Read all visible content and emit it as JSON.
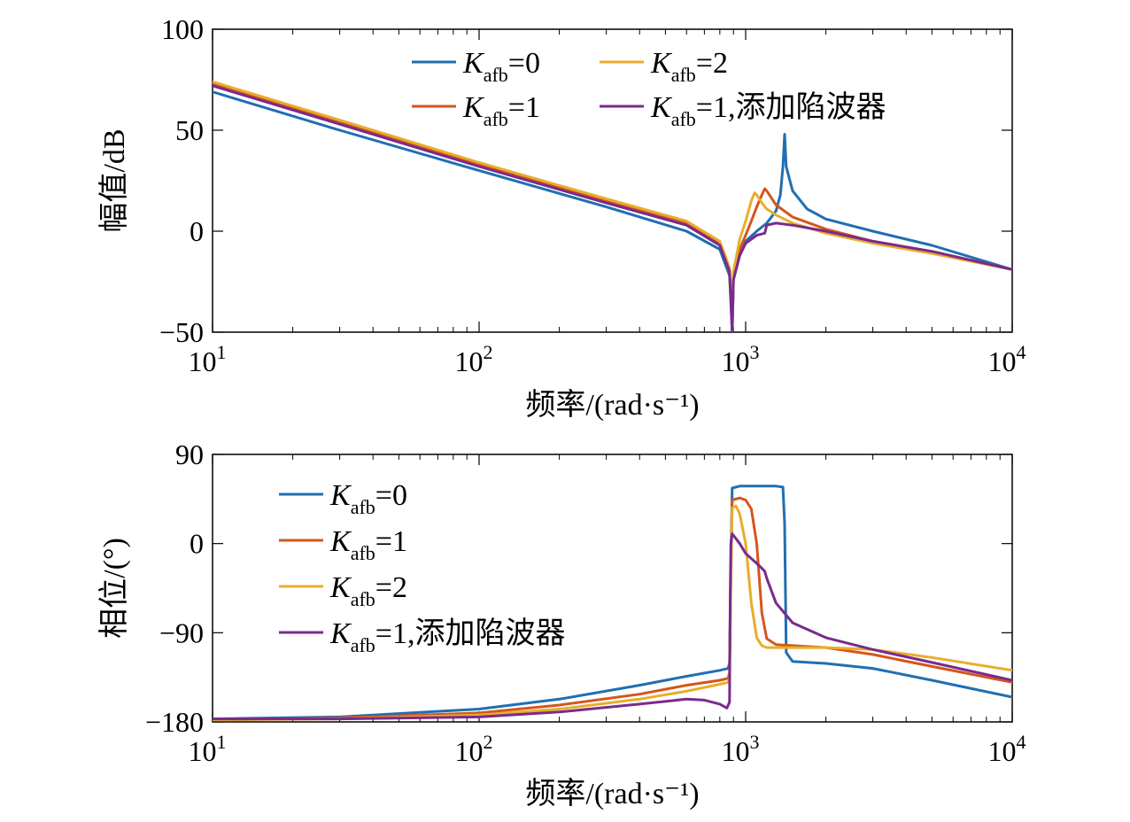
{
  "colors": {
    "k0": "#1f6fb2",
    "k1": "#d4561b",
    "k2": "#e8ad2b",
    "notch": "#7a2a8c"
  },
  "chart_data": [
    {
      "type": "line",
      "xscale": "log",
      "xlim": [
        10,
        10000
      ],
      "ylim": [
        -50,
        100
      ],
      "xlabel": "频率/(rad·s⁻¹)",
      "ylabel": "幅值/dB",
      "xticks": [
        10,
        100,
        1000,
        10000
      ],
      "yticks": [
        100,
        50,
        0,
        -50
      ],
      "xtick_labels": [
        {
          "base": "10",
          "exp": "1"
        },
        {
          "base": "10",
          "exp": "2"
        },
        {
          "base": "10",
          "exp": "3"
        },
        {
          "base": "10",
          "exp": "4"
        }
      ],
      "ytick_labels": [
        "100",
        "50",
        "0",
        "−50"
      ],
      "legend_position": "top",
      "series": [
        {
          "name": "Kafb=0",
          "label_main": "K",
          "label_sub": "afb",
          "label_tail": "=0",
          "color_key": "k0",
          "x": [
            10,
            30,
            100,
            300,
            600,
            800,
            870,
            880,
            890,
            900,
            950,
            1000,
            1100,
            1200,
            1300,
            1350,
            1380,
            1400,
            1420,
            1500,
            1700,
            2000,
            3000,
            5000,
            10000
          ],
          "y": [
            69,
            50,
            30,
            12,
            0,
            -9,
            -22,
            -35,
            -50,
            -24,
            -12,
            -5,
            0,
            4,
            10,
            18,
            32,
            48,
            32,
            20,
            11,
            6,
            0,
            -7,
            -19
          ]
        },
        {
          "name": "Kafb=1",
          "label_main": "K",
          "label_sub": "afb",
          "label_tail": "=1",
          "color_key": "k1",
          "x": [
            10,
            30,
            100,
            300,
            600,
            800,
            870,
            880,
            890,
            900,
            950,
            1000,
            1050,
            1100,
            1150,
            1180,
            1200,
            1300,
            1500,
            2000,
            3000,
            5000,
            10000
          ],
          "y": [
            73,
            54,
            33,
            15,
            4,
            -6,
            -20,
            -33,
            -48,
            -22,
            -9,
            -2,
            5,
            12,
            18,
            21,
            20,
            13,
            7,
            1,
            -5,
            -10,
            -19
          ]
        },
        {
          "name": "Kafb=2",
          "label_main": "K",
          "label_sub": "afb",
          "label_tail": "=2",
          "color_key": "k2",
          "x": [
            10,
            30,
            100,
            300,
            600,
            800,
            870,
            880,
            890,
            900,
            950,
            1000,
            1050,
            1080,
            1100,
            1150,
            1200,
            1300,
            1500,
            2000,
            3000,
            5000,
            10000
          ],
          "y": [
            74,
            55,
            34,
            16,
            5,
            -5,
            -18,
            -30,
            -44,
            -20,
            -4,
            5,
            15,
            19,
            18,
            14,
            11,
            8,
            4,
            -1,
            -6,
            -11,
            -19
          ]
        },
        {
          "name": "Kafb=1,添加陷波器",
          "label_main": "K",
          "label_sub": "afb",
          "label_tail": "=1,添加陷波器",
          "color_key": "notch",
          "x": [
            10,
            30,
            100,
            300,
            600,
            800,
            870,
            880,
            890,
            900,
            950,
            1000,
            1100,
            1180,
            1200,
            1300,
            1500,
            2000,
            3000,
            5000,
            10000
          ],
          "y": [
            72,
            53,
            32,
            14,
            3,
            -7,
            -20,
            -35,
            -50,
            -24,
            -12,
            -6,
            -2,
            -1,
            3,
            4,
            3,
            0,
            -5,
            -10,
            -19
          ]
        }
      ]
    },
    {
      "type": "line",
      "xscale": "log",
      "xlim": [
        10,
        10000
      ],
      "ylim": [
        -180,
        90
      ],
      "xlabel": "频率/(rad·s⁻¹)",
      "ylabel": "相位/(°)",
      "xticks": [
        10,
        100,
        1000,
        10000
      ],
      "yticks": [
        90,
        0,
        -90,
        -180
      ],
      "xtick_labels": [
        {
          "base": "10",
          "exp": "1"
        },
        {
          "base": "10",
          "exp": "2"
        },
        {
          "base": "10",
          "exp": "3"
        },
        {
          "base": "10",
          "exp": "4"
        }
      ],
      "ytick_labels": [
        "90",
        "0",
        "−90",
        "−180"
      ],
      "legend_position": "top-left",
      "series": [
        {
          "name": "Kafb=0",
          "label_main": "K",
          "label_sub": "afb",
          "label_tail": "=0",
          "color_key": "k0",
          "x": [
            10,
            30,
            100,
            200,
            400,
            600,
            800,
            860,
            870,
            880,
            890,
            950,
            1100,
            1300,
            1380,
            1400,
            1420,
            1500,
            2000,
            3000,
            5000,
            10000
          ],
          "y": [
            -177,
            -175,
            -167,
            -157,
            -143,
            -134,
            -128,
            -126,
            -120,
            -20,
            56,
            58,
            58,
            58,
            57,
            20,
            -110,
            -119,
            -121,
            -126,
            -138,
            -155
          ]
        },
        {
          "name": "Kafb=1",
          "label_main": "K",
          "label_sub": "afb",
          "label_tail": "=1",
          "color_key": "k1",
          "x": [
            10,
            30,
            100,
            200,
            400,
            600,
            800,
            860,
            870,
            880,
            890,
            950,
            1000,
            1050,
            1100,
            1150,
            1200,
            1300,
            1500,
            2000,
            3000,
            5000,
            10000
          ],
          "y": [
            -178,
            -176,
            -171,
            -163,
            -152,
            -143,
            -138,
            -136,
            -130,
            -30,
            44,
            46,
            44,
            35,
            0,
            -70,
            -96,
            -102,
            -103,
            -105,
            -112,
            -124,
            -140
          ]
        },
        {
          "name": "Kafb=2",
          "label_main": "K",
          "label_sub": "afb",
          "label_tail": "=2",
          "color_key": "k2",
          "x": [
            10,
            30,
            100,
            200,
            400,
            600,
            800,
            860,
            870,
            880,
            890,
            920,
            950,
            1000,
            1050,
            1100,
            1150,
            1200,
            1500,
            2000,
            3000,
            5000,
            10000
          ],
          "y": [
            -178,
            -177,
            -173,
            -167,
            -157,
            -149,
            -142,
            -140,
            -135,
            -40,
            36,
            38,
            30,
            0,
            -60,
            -95,
            -103,
            -105,
            -105,
            -105,
            -107,
            -115,
            -128
          ]
        },
        {
          "name": "Kafb=1,添加陷波器",
          "label_main": "K",
          "label_sub": "afb",
          "label_tail": "=1,添加陷波器",
          "color_key": "notch",
          "x": [
            10,
            30,
            100,
            200,
            400,
            600,
            700,
            800,
            850,
            870,
            875,
            880,
            890,
            950,
            1000,
            1100,
            1150,
            1180,
            1200,
            1300,
            1500,
            2000,
            3000,
            5000,
            10000
          ],
          "y": [
            -177,
            -177,
            -175,
            -170,
            -162,
            -157,
            -158,
            -162,
            -166,
            -160,
            -60,
            0,
            10,
            0,
            -10,
            -20,
            -25,
            -28,
            -35,
            -60,
            -80,
            -95,
            -107,
            -120,
            -138
          ]
        }
      ]
    }
  ]
}
